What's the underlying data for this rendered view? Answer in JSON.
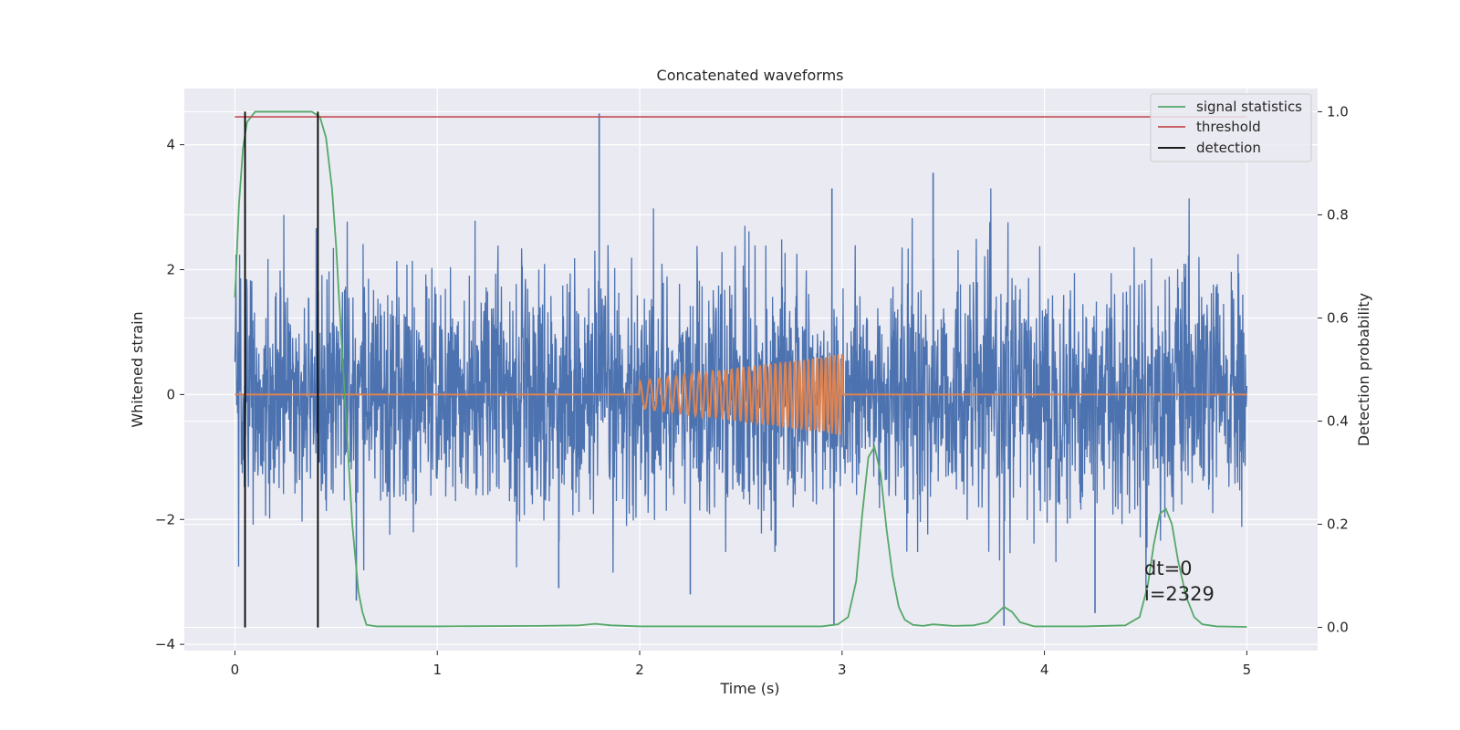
{
  "chart_data": {
    "type": "line",
    "title": "Concatenated waveforms",
    "xlabel": "Time (s)",
    "ylabel": "Whitened strain",
    "ylabel_right": "Detection probability",
    "xlim": [
      -0.25,
      5.35
    ],
    "ylim": [
      -4.1,
      4.9
    ],
    "ylim_right": [
      -0.045,
      1.045
    ],
    "x_ticks": [
      "0",
      "1",
      "2",
      "3",
      "4",
      "5"
    ],
    "y_ticks": [
      "4",
      "2",
      "0",
      "−2",
      "−4"
    ],
    "y_right_ticks": [
      "1.0",
      "0.8",
      "0.6",
      "0.4",
      "0.2",
      "0.0"
    ],
    "grid": true,
    "legend_position": "upper right",
    "legend": [
      "signal statistics",
      "threshold",
      "detection"
    ],
    "colors": {
      "strain": "#4c72b0",
      "injected": "#dd8452",
      "signal_statistics": "#55a868",
      "threshold": "#c44e52",
      "detection": "#000000",
      "background": "#eaeaf2",
      "grid": "#ffffff"
    },
    "series": [
      {
        "name": "",
        "axis": "left",
        "kind": "noise",
        "x_range": [
          0,
          5
        ],
        "envelope_typical": 1.7,
        "envelope_peak": 3.3,
        "notable_peaks": [
          {
            "x": 1.8,
            "y": 4.5
          },
          {
            "x": 2.95,
            "y": 3.3
          },
          {
            "x": 3.45,
            "y": 3.55
          },
          {
            "x": 2.96,
            "y": -3.7
          },
          {
            "x": 1.6,
            "y": -3.1
          },
          {
            "x": 2.25,
            "y": -3.2
          },
          {
            "x": 3.8,
            "y": -3.7
          },
          {
            "x": 4.25,
            "y": -3.5
          },
          {
            "x": 0.6,
            "y": -3.3
          }
        ]
      },
      {
        "name": "",
        "axis": "left",
        "kind": "chirp",
        "x_range": [
          0,
          5
        ],
        "chirp_start": 2.0,
        "chirp_end": 3.0,
        "amplitude_start": 0.22,
        "amplitude_end": 0.65,
        "cycles": 35
      },
      {
        "name": "signal statistics",
        "axis": "right",
        "x": [
          0.0,
          0.02,
          0.04,
          0.06,
          0.1,
          0.2,
          0.3,
          0.38,
          0.42,
          0.45,
          0.48,
          0.5,
          0.52,
          0.55,
          0.58,
          0.61,
          0.63,
          0.65,
          0.7,
          1.0,
          1.5,
          1.7,
          1.78,
          1.86,
          2.0,
          2.5,
          2.9,
          2.98,
          3.03,
          3.07,
          3.1,
          3.13,
          3.16,
          3.19,
          3.22,
          3.25,
          3.28,
          3.31,
          3.35,
          3.4,
          3.45,
          3.55,
          3.65,
          3.72,
          3.76,
          3.8,
          3.84,
          3.88,
          3.95,
          4.2,
          4.4,
          4.47,
          4.51,
          4.54,
          4.57,
          4.6,
          4.63,
          4.66,
          4.7,
          4.74,
          4.78,
          4.85,
          5.0
        ],
        "y": [
          0.64,
          0.82,
          0.93,
          0.98,
          1.0,
          1.0,
          1.0,
          1.0,
          0.99,
          0.95,
          0.85,
          0.74,
          0.6,
          0.4,
          0.2,
          0.07,
          0.03,
          0.005,
          0.002,
          0.002,
          0.003,
          0.004,
          0.007,
          0.004,
          0.002,
          0.002,
          0.002,
          0.006,
          0.02,
          0.09,
          0.22,
          0.33,
          0.35,
          0.3,
          0.19,
          0.1,
          0.04,
          0.015,
          0.005,
          0.003,
          0.006,
          0.003,
          0.004,
          0.01,
          0.025,
          0.04,
          0.03,
          0.01,
          0.002,
          0.002,
          0.004,
          0.02,
          0.08,
          0.16,
          0.22,
          0.23,
          0.2,
          0.13,
          0.06,
          0.02,
          0.006,
          0.002,
          0.001
        ]
      },
      {
        "name": "threshold",
        "axis": "right",
        "x": [
          0,
          5
        ],
        "y": [
          0.99,
          0.99
        ]
      },
      {
        "name": "detection",
        "axis": "right",
        "kind": "vertical_lines",
        "x": [
          0.05,
          0.41
        ],
        "y": [
          0.0,
          1.0
        ]
      }
    ],
    "annotations": [
      "dt=0",
      "i=2329"
    ]
  }
}
